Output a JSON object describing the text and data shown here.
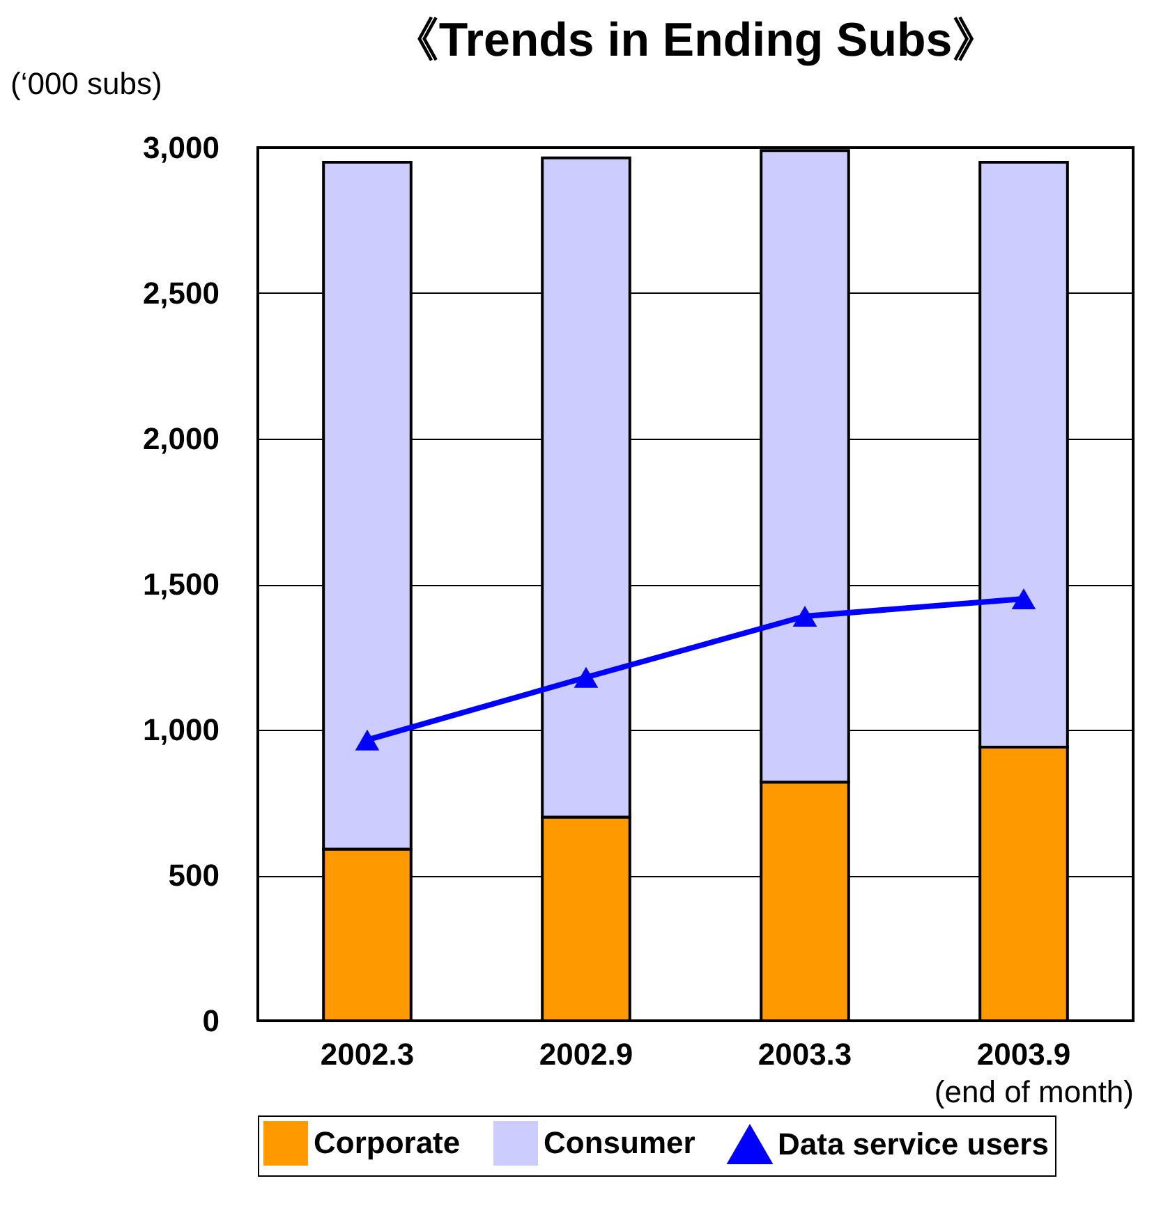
{
  "chart_data": {
    "type": "bar",
    "title": "《Trends in Ending Subs》",
    "ylabel": "(‘000 subs)",
    "annotations": [
      "(end of month)"
    ],
    "categories": [
      "2002.3",
      "2002.9",
      "2003.3",
      "2003.9"
    ],
    "stacked": true,
    "series": [
      {
        "name": "Corporate",
        "color": "#ff9900",
        "values": [
          590,
          700,
          820,
          940
        ]
      },
      {
        "name": "Consumer",
        "color": "#ccccff",
        "values": [
          2360,
          2265,
          2170,
          2010
        ]
      },
      {
        "name": "Data service users",
        "type": "line",
        "color": "#0000ff",
        "values": [
          965,
          1180,
          1390,
          1450
        ]
      }
    ],
    "ylim": [
      0,
      3000
    ],
    "yticks": [
      {
        "value": 0,
        "label": "0"
      },
      {
        "value": 500,
        "label": "500"
      },
      {
        "value": 1000,
        "label": "1,000"
      },
      {
        "value": 1500,
        "label": "1,500"
      },
      {
        "value": 2000,
        "label": "2,000"
      },
      {
        "value": 2500,
        "label": "2,500"
      },
      {
        "value": 3000,
        "label": "3,000"
      }
    ],
    "grid": "y",
    "legend": "bottom",
    "marker": "triangle"
  }
}
